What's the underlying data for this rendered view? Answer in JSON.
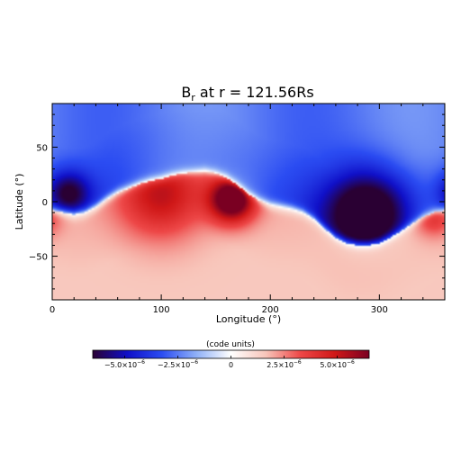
{
  "chart_data": {
    "type": "heatmap",
    "title": {
      "main": "B",
      "sub": "r",
      "rest": " at r = 121.56Rs"
    },
    "xlabel": "Longitude (°)",
    "ylabel": "Latitude (°)",
    "xlim": [
      0,
      360
    ],
    "ylim": [
      -90,
      90
    ],
    "xticks": [
      0,
      100,
      200,
      300
    ],
    "yticks": [
      -50,
      0,
      50
    ],
    "colorbar": {
      "label": "(code units)",
      "range": [
        -6.5e-06,
        6.5e-06
      ],
      "ticks": [
        {
          "value": -5e-06,
          "mant": "−5.0×10",
          "exp": "−6"
        },
        {
          "value": -2.5e-06,
          "mant": "−2.5×10",
          "exp": "−6"
        },
        {
          "value": 0,
          "mant": "0",
          "exp": ""
        },
        {
          "value": 2.5e-06,
          "mant": "2.5×10",
          "exp": "−6"
        },
        {
          "value": 5e-06,
          "mant": "5.0×10",
          "exp": "−6"
        }
      ],
      "colors": [
        "#2a0033",
        "#1010c8",
        "#2b4cf2",
        "#8fb0f7",
        "#ffffff",
        "#f8c6bb",
        "#ee4848",
        "#d01818",
        "#7a0022"
      ]
    },
    "field": {
      "units": "code units",
      "max_abs": 6.5e-06,
      "neutral_line": {
        "longitude": [
          0,
          10,
          20,
          30,
          40,
          50,
          60,
          70,
          80,
          90,
          100,
          110,
          120,
          130,
          140,
          150,
          160,
          170,
          180,
          190,
          200,
          210,
          220,
          230,
          240,
          250,
          260,
          270,
          280,
          290,
          300,
          310,
          320,
          330,
          340,
          350,
          360
        ],
        "latitude": [
          -8,
          -10,
          -12,
          -10,
          -5,
          2,
          8,
          12,
          16,
          19,
          21,
          24,
          26,
          27,
          28,
          26,
          22,
          15,
          7,
          1,
          -3,
          -5,
          -7,
          -10,
          -16,
          -25,
          -33,
          -38,
          -40,
          -40,
          -38,
          -33,
          -27,
          -20,
          -14,
          -10,
          -8
        ]
      },
      "positive_side": "south",
      "blobs": [
        {
          "longitude": 165,
          "latitude": 2,
          "strength": 6.2e-06,
          "width": 15
        },
        {
          "longitude": 100,
          "latitude": 6,
          "strength": 3.4e-06,
          "width": 28
        },
        {
          "longitude": 350,
          "latitude": -14,
          "strength": 2.2e-06,
          "width": 12
        },
        {
          "longitude": 290,
          "latitude": -10,
          "strength": -5.6e-06,
          "width": 28
        },
        {
          "longitude": 15,
          "latitude": 8,
          "strength": -3.6e-06,
          "width": 14
        }
      ]
    }
  }
}
